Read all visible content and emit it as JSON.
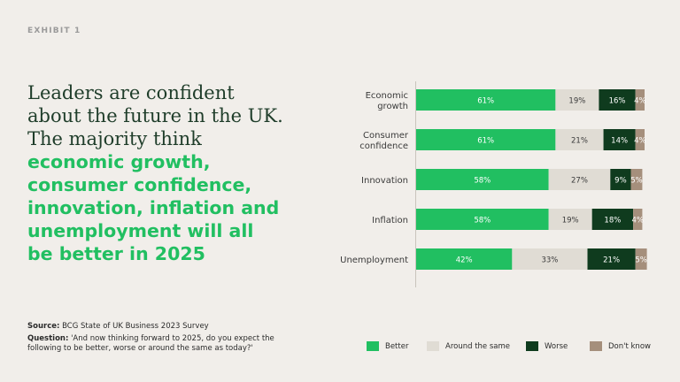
{
  "exhibit_label": "EXHIBIT 1",
  "headline": {
    "serif_lines": [
      "Leaders are confident",
      "about the future in the UK.",
      "The majority think"
    ],
    "accent_lines": [
      "economic growth,",
      "consumer confidence,",
      "innovation, inflation and",
      "unemployment will all",
      "be better in 2025"
    ]
  },
  "footer": {
    "source_label": "Source:",
    "source_text": "BCG State of UK Business 2023 Survey",
    "question_label": "Question:",
    "question_text": "'And now thinking forward to 2025, do you expect the following to be better, worse or around the same as today?'"
  },
  "colors": {
    "better": "#21bf61",
    "same": "#e0dcd4",
    "worse": "#0f3b1e",
    "dont_know": "#a58f7c"
  },
  "chart_data": {
    "type": "bar",
    "orientation": "horizontal",
    "stacked": true,
    "categories": [
      [
        "Economic",
        "growth"
      ],
      [
        "Consumer",
        "confidence"
      ],
      [
        "Innovation"
      ],
      [
        "Inflation"
      ],
      [
        "Unemployment"
      ]
    ],
    "series": [
      {
        "name": "Better",
        "key": "better",
        "values": [
          61,
          61,
          58,
          58,
          42
        ]
      },
      {
        "name": "Around the same",
        "key": "same",
        "values": [
          19,
          21,
          27,
          19,
          33
        ]
      },
      {
        "name": "Worse",
        "key": "worse",
        "values": [
          16,
          14,
          9,
          18,
          21
        ]
      },
      {
        "name": "Don't know",
        "key": "dont_know",
        "values": [
          4,
          4,
          5,
          4,
          5
        ]
      }
    ],
    "value_suffix": "%",
    "xlim": [
      0,
      100
    ],
    "legend_position": "bottom"
  }
}
